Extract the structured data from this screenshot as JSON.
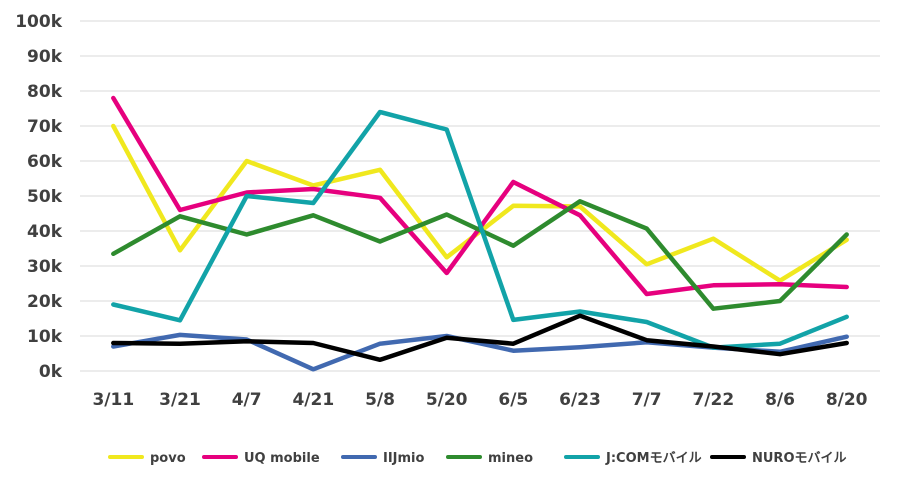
{
  "chart_data": {
    "type": "line",
    "title": "",
    "xlabel": "",
    "ylabel": "",
    "categories": [
      "3/11",
      "3/21",
      "4/7",
      "4/21",
      "5/8",
      "5/20",
      "6/5",
      "6/23",
      "7/7",
      "7/22",
      "8/6",
      "8/20"
    ],
    "ylim": [
      0,
      100000
    ],
    "yticks": [
      0,
      10000,
      20000,
      30000,
      40000,
      50000,
      60000,
      70000,
      80000,
      90000,
      100000
    ],
    "ytick_labels": [
      "0k",
      "10k",
      "20k",
      "30k",
      "40k",
      "50k",
      "60k",
      "70k",
      "80k",
      "90k",
      "100k"
    ],
    "grid": true,
    "legend": "bottom",
    "series": [
      {
        "name": "povo",
        "color": "#f0e81e",
        "values": [
          70000,
          34500,
          60000,
          53000,
          57500,
          32500,
          47200,
          47000,
          30500,
          37800,
          25800,
          37500
        ]
      },
      {
        "name": "UQ mobile",
        "color": "#e6007e",
        "values": [
          78000,
          46000,
          51000,
          52000,
          49500,
          28000,
          54000,
          44500,
          22000,
          24500,
          24800,
          24000
        ]
      },
      {
        "name": "IIJmio",
        "color": "#4169b0",
        "values": [
          7000,
          10300,
          9000,
          500,
          7800,
          10000,
          5800,
          6800,
          8200,
          6700,
          5500,
          9800
        ]
      },
      {
        "name": "mineo",
        "color": "#2e8b2e",
        "values": [
          33500,
          44200,
          39000,
          44500,
          37000,
          44700,
          35800,
          48500,
          40700,
          17800,
          20000,
          39000
        ]
      },
      {
        "name": "J:COMモバイル",
        "color": "#12a3a8",
        "values": [
          19000,
          14500,
          50000,
          48000,
          74000,
          69000,
          14600,
          17000,
          14000,
          6700,
          7800,
          15500
        ]
      },
      {
        "name": "NUROモバイル",
        "color": "#000000",
        "values": [
          8000,
          7800,
          8500,
          8000,
          3200,
          9500,
          7800,
          15800,
          8800,
          7000,
          4800,
          8000
        ]
      }
    ]
  }
}
